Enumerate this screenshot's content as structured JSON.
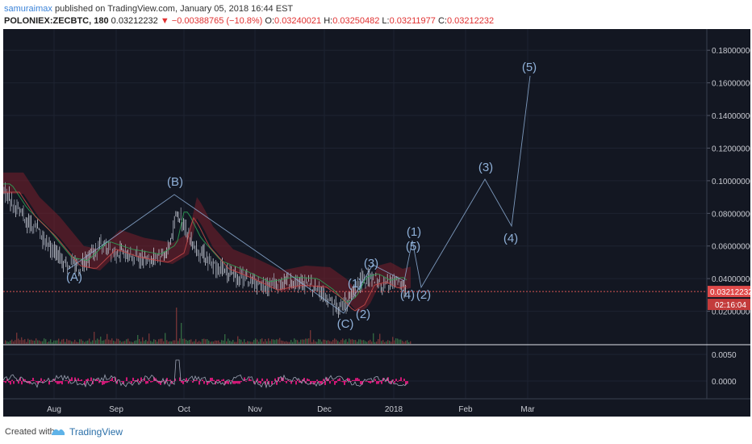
{
  "header": {
    "author": "samuraimax",
    "published_text": "published on TradingView.com, January 05, 2018 16:44 EST",
    "symbol": "POLONIEX:ZECBTC, 180",
    "last": "0.03212232",
    "change_arrow": "▼",
    "change": "−0.00388765 (−10.8%)",
    "open_label": "O:",
    "open": "0.03240021",
    "high_label": "H:",
    "high": "0.03250482",
    "low_label": "L:",
    "low": "0.03211977",
    "close_label": "C:",
    "close": "0.03212232"
  },
  "price_axis": {
    "ticks": [
      "0.18000000",
      "0.16000000",
      "0.14000000",
      "0.12000000",
      "0.10000000",
      "0.08000000",
      "0.06000000",
      "0.04000000",
      "0.02000000"
    ],
    "current_price": "0.03212232",
    "countdown": "02:16:04"
  },
  "oscillator_axis": {
    "ticks": [
      "0.0050",
      "0.0000"
    ]
  },
  "time_axis": {
    "ticks": [
      "Aug",
      "Sep",
      "Oct",
      "Nov",
      "Dec",
      "2018",
      "Feb",
      "Mar"
    ]
  },
  "wave_labels": [
    "(A)",
    "(B)",
    "(C)",
    "(1)",
    "(2)",
    "(3)",
    "(4)",
    "(5)",
    "(1)",
    "(2)",
    "(3)",
    "(4)",
    "(5)"
  ],
  "colors": {
    "background": "#131722",
    "grid": "#1e2331",
    "axis_text": "#c9cbd2",
    "wave": "#8fb0d8",
    "price_line": "#d85454",
    "oscillator": "#e4187e"
  },
  "footer": {
    "created_with": "Created with",
    "brand": "TradingView"
  }
}
